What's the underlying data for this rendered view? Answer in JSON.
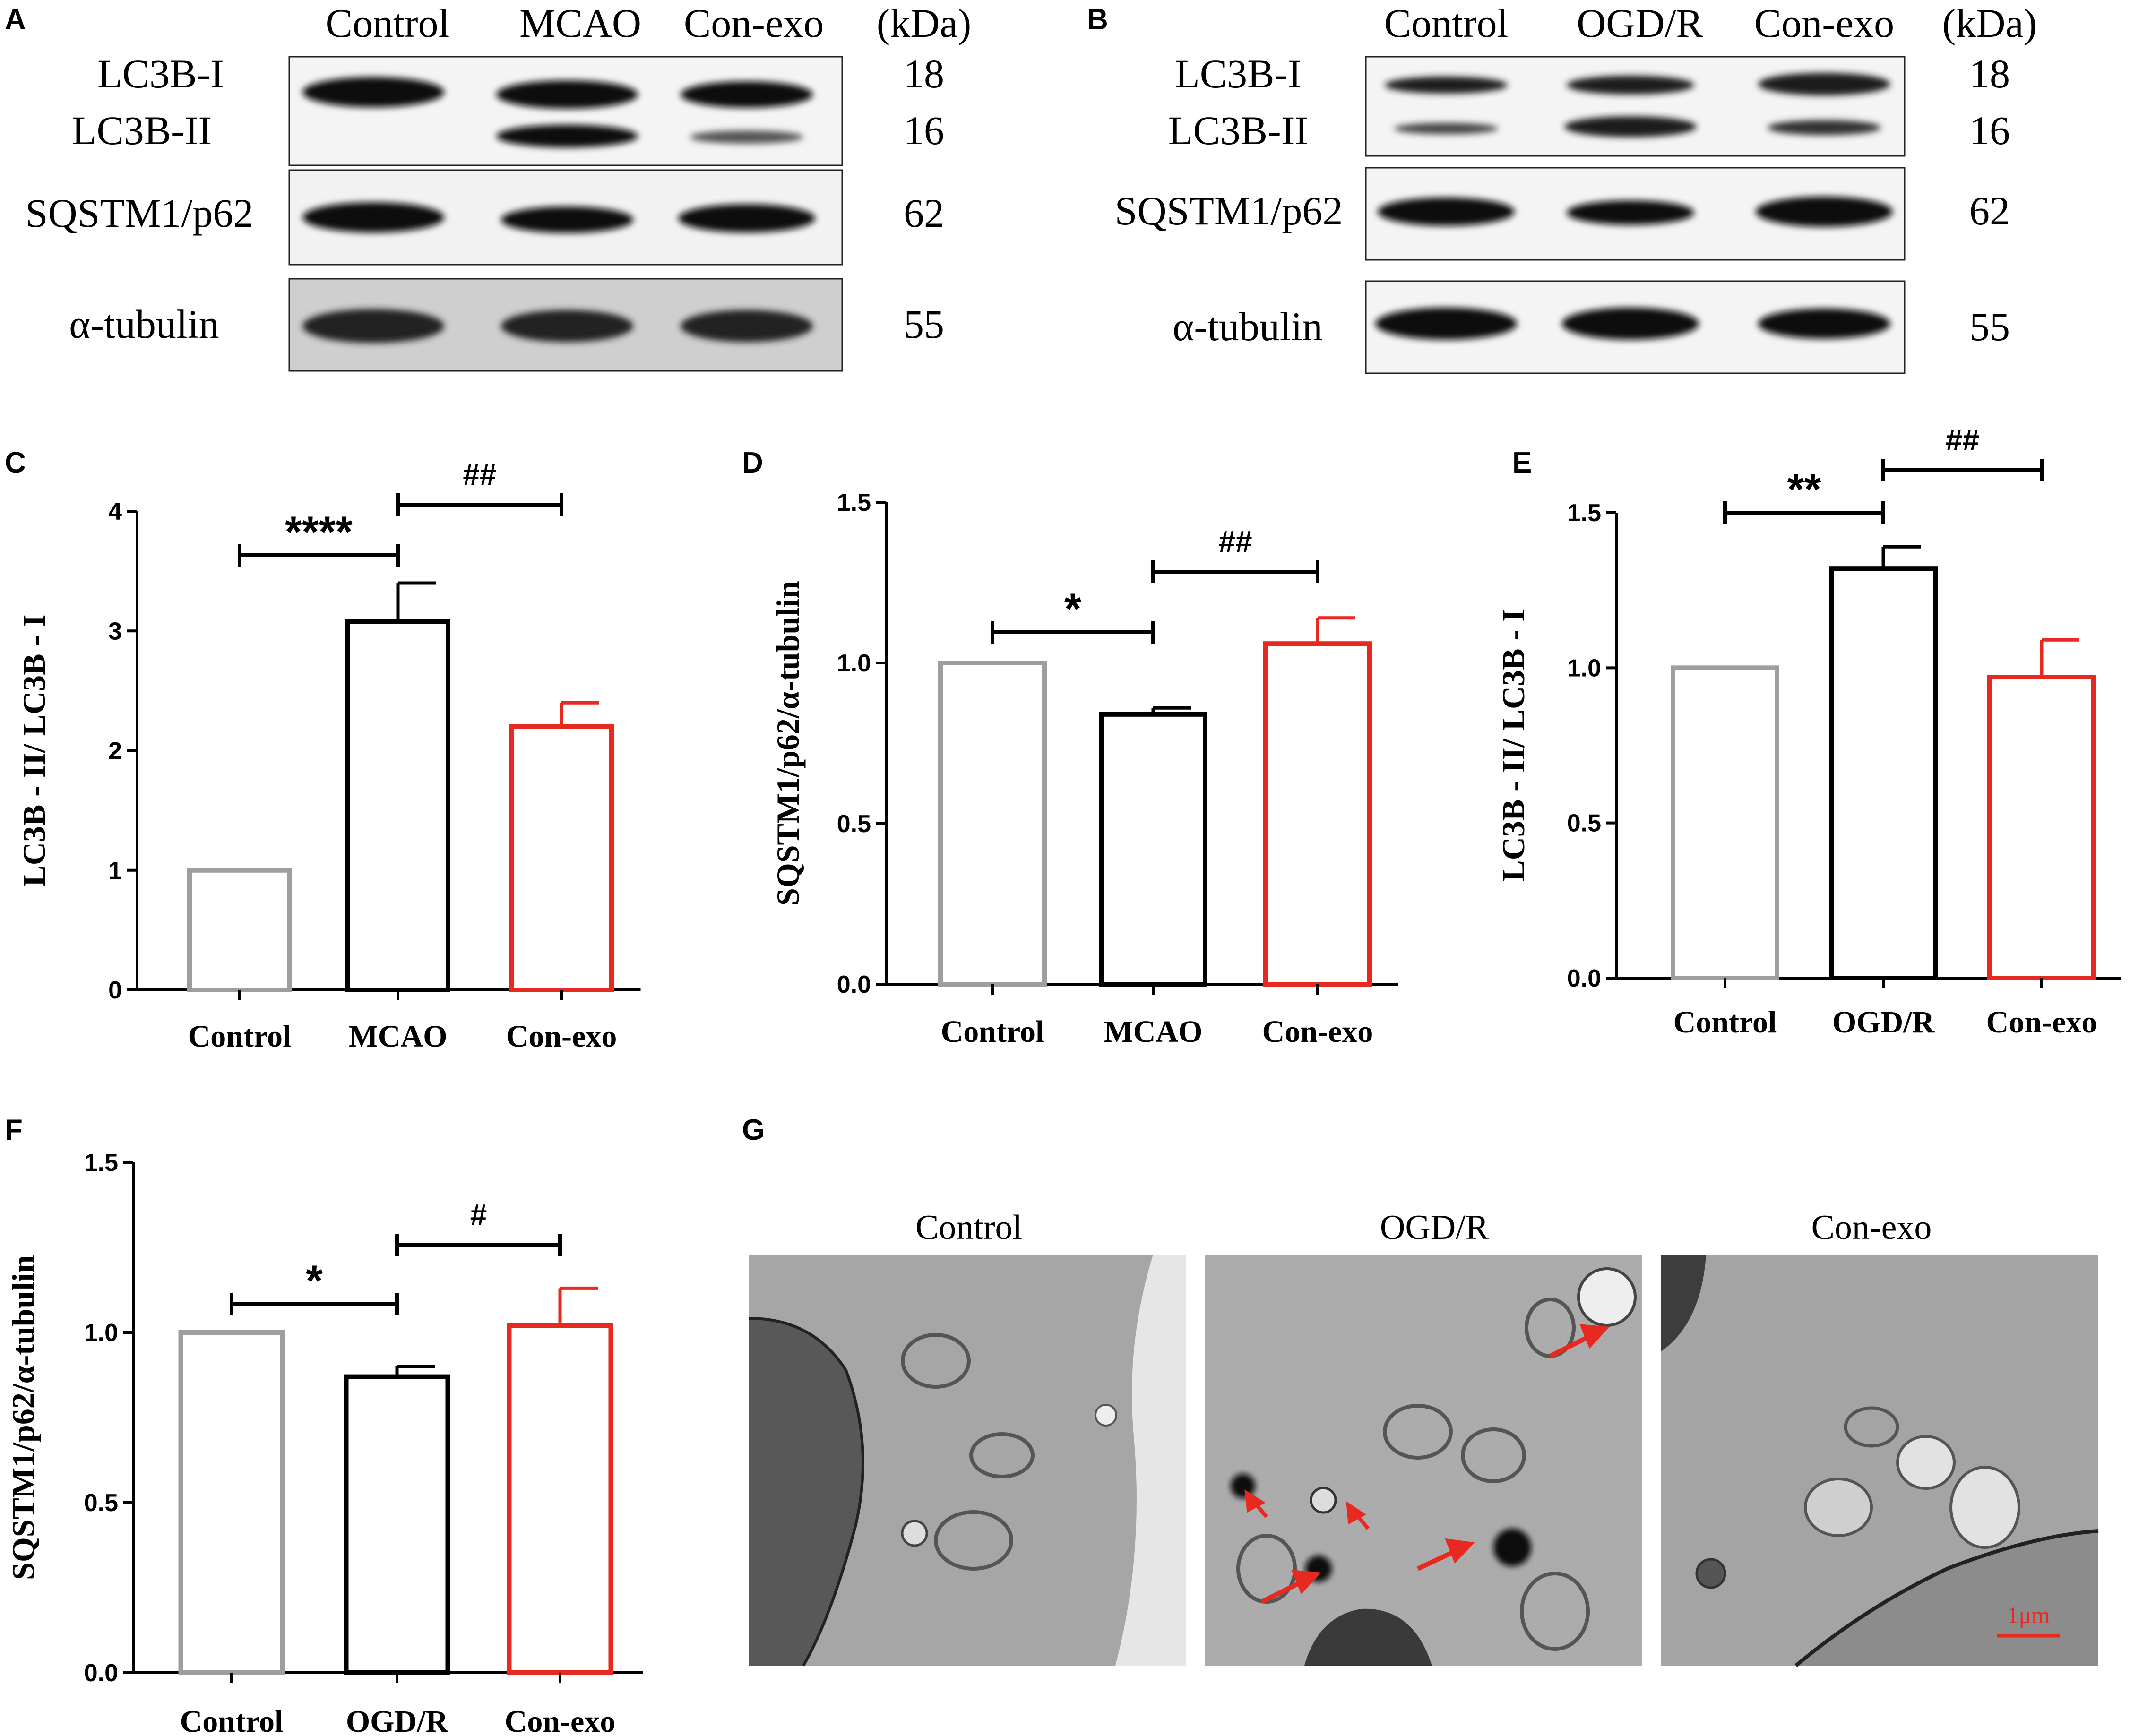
{
  "panels": {
    "A": {
      "letter": "A",
      "lanes": [
        "Control",
        "MCAO",
        "Con-exo"
      ],
      "kda_header": "(kDa)",
      "rows": [
        {
          "label": "LC3B-I",
          "kda": "18"
        },
        {
          "label": "LC3B-II",
          "kda": "16"
        },
        {
          "label": "SQSTM1/p62",
          "kda": "62"
        },
        {
          "label": "α-tubulin",
          "kda": "55"
        }
      ]
    },
    "B": {
      "letter": "B",
      "lanes": [
        "Control",
        "OGD/R",
        "Con-exo"
      ],
      "kda_header": "(kDa)",
      "rows": [
        {
          "label": "LC3B-I",
          "kda": "18"
        },
        {
          "label": "LC3B-II",
          "kda": "16"
        },
        {
          "label": "SQSTM1/p62",
          "kda": "62"
        },
        {
          "label": "α-tubulin",
          "kda": "55"
        }
      ]
    },
    "G": {
      "letter": "G",
      "titles": [
        "Control",
        "OGD/R",
        "Con-exo"
      ],
      "scale_bar": "1μm"
    }
  },
  "chart_data": [
    {
      "letter": "C",
      "type": "bar",
      "categories": [
        "Control",
        "MCAO",
        "Con-exo"
      ],
      "values": [
        1.0,
        3.08,
        2.2
      ],
      "errors": [
        0,
        0.32,
        0.2
      ],
      "colors": [
        "#9e9e9e",
        "#000000",
        "#e8291f"
      ],
      "ylabel": "LC3B - II/ LC3B - I",
      "ylim": [
        0,
        4
      ],
      "yticks": [
        "0",
        "1",
        "2",
        "3",
        "4"
      ],
      "comparisons": [
        {
          "from": 0,
          "to": 1,
          "label": "****"
        },
        {
          "from": 1,
          "to": 2,
          "label": "##"
        }
      ]
    },
    {
      "letter": "D",
      "type": "bar",
      "categories": [
        "Control",
        "MCAO",
        "Con-exo"
      ],
      "values": [
        1.0,
        0.84,
        1.06
      ],
      "errors": [
        0,
        0.02,
        0.08
      ],
      "colors": [
        "#9e9e9e",
        "#000000",
        "#e8291f"
      ],
      "ylabel": "SQSTM1/p62/α-tubulin",
      "ylim": [
        0,
        1.5
      ],
      "yticks": [
        "0.0",
        "0.5",
        "1.0",
        "1.5"
      ],
      "comparisons": [
        {
          "from": 0,
          "to": 1,
          "label": "*"
        },
        {
          "from": 1,
          "to": 2,
          "label": "##"
        }
      ]
    },
    {
      "letter": "E",
      "type": "bar",
      "categories": [
        "Control",
        "OGD/R",
        "Con-exo"
      ],
      "values": [
        1.0,
        1.32,
        0.97
      ],
      "errors": [
        0,
        0.07,
        0.12
      ],
      "colors": [
        "#9e9e9e",
        "#000000",
        "#e8291f"
      ],
      "ylabel": "LC3B - II/ LC3B - I",
      "ylim": [
        0,
        1.5
      ],
      "yticks": [
        "0.0",
        "0.5",
        "1.0",
        "1.5"
      ],
      "comparisons": [
        {
          "from": 0,
          "to": 1,
          "label": "**"
        },
        {
          "from": 1,
          "to": 2,
          "label": "##"
        }
      ]
    },
    {
      "letter": "F",
      "type": "bar",
      "categories": [
        "Control",
        "OGD/R",
        "Con-exo"
      ],
      "values": [
        1.0,
        0.87,
        1.02
      ],
      "errors": [
        0,
        0.03,
        0.11
      ],
      "colors": [
        "#9e9e9e",
        "#000000",
        "#e8291f"
      ],
      "ylabel": "SQSTM1/p62/α-tubulin",
      "ylim": [
        0,
        1.5
      ],
      "yticks": [
        "0.0",
        "0.5",
        "1.0",
        "1.5"
      ],
      "comparisons": [
        {
          "from": 0,
          "to": 1,
          "label": "*"
        },
        {
          "from": 1,
          "to": 2,
          "label": "#"
        }
      ]
    }
  ]
}
